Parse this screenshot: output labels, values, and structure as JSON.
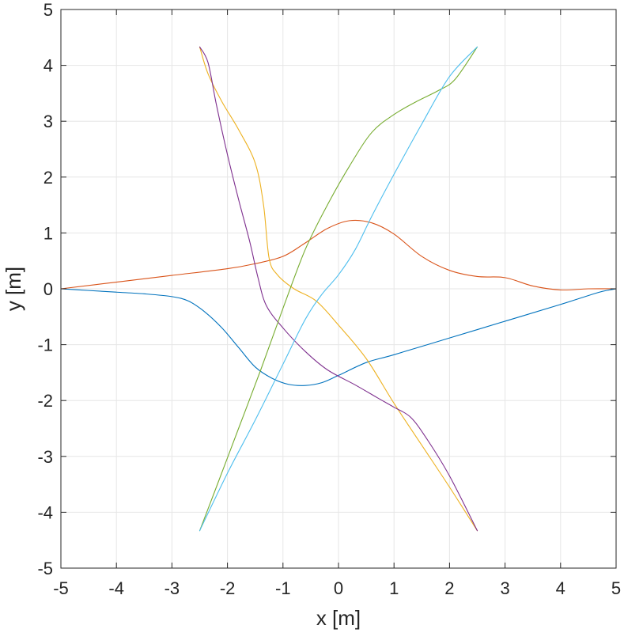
{
  "chart_data": {
    "type": "line",
    "title": "",
    "xlabel": "x [m]",
    "ylabel": "y [m]",
    "xlim": [
      -5,
      5
    ],
    "ylim": [
      -5,
      5
    ],
    "xticks": [
      -5,
      -4,
      -3,
      -2,
      -1,
      0,
      1,
      2,
      3,
      4,
      5
    ],
    "yticks": [
      -5,
      -4,
      -3,
      -2,
      -1,
      0,
      1,
      2,
      3,
      4,
      5
    ],
    "grid": true,
    "series": [
      {
        "color": "#0072BD",
        "x": [
          -5,
          -4.5,
          -4,
          -3.5,
          -3,
          -2.7,
          -2.4,
          -2.1,
          -1.8,
          -1.5,
          -1.2,
          -0.9,
          -0.6,
          -0.3,
          0,
          0.5,
          1,
          2,
          3,
          4,
          4.7,
          5
        ],
        "y": [
          0,
          -0.03,
          -0.06,
          -0.09,
          -0.14,
          -0.22,
          -0.42,
          -0.7,
          -1.05,
          -1.4,
          -1.6,
          -1.71,
          -1.73,
          -1.68,
          -1.55,
          -1.32,
          -1.18,
          -0.88,
          -0.58,
          -0.28,
          -0.06,
          0
        ]
      },
      {
        "color": "#D95319",
        "x": [
          -5,
          -4,
          -3,
          -2,
          -1.5,
          -1,
          -0.6,
          -0.2,
          0.2,
          0.6,
          1,
          1.5,
          2,
          2.5,
          3,
          3.5,
          4,
          4.5,
          5
        ],
        "y": [
          0,
          0.12,
          0.24,
          0.36,
          0.45,
          0.58,
          0.82,
          1.08,
          1.22,
          1.18,
          0.98,
          0.58,
          0.33,
          0.22,
          0.2,
          0.05,
          -0.02,
          0,
          0
        ]
      },
      {
        "color": "#EDB120",
        "x": [
          -2.5,
          -2.35,
          -2.1,
          -1.8,
          -1.5,
          -1.35,
          -1.25,
          -1.1,
          -0.8,
          -0.4,
          0,
          0.5,
          1,
          1.5,
          2,
          2.5
        ],
        "y": [
          4.33,
          3.85,
          3.35,
          2.85,
          2.25,
          1.5,
          0.55,
          0.25,
          0,
          -0.22,
          -0.65,
          -1.25,
          -2.05,
          -2.8,
          -3.55,
          -4.33
        ]
      },
      {
        "color": "#7E2F8E",
        "x": [
          -2.5,
          -2.35,
          -2.2,
          -2,
          -1.8,
          -1.6,
          -1.45,
          -1.3,
          -1,
          -0.6,
          -0.2,
          0.3,
          0.7,
          1,
          1.3,
          1.6,
          2,
          2.5
        ],
        "y": [
          4.33,
          4.05,
          3.3,
          2.4,
          1.6,
          0.85,
          0.2,
          -0.3,
          -0.7,
          -1.12,
          -1.45,
          -1.72,
          -1.95,
          -2.12,
          -2.3,
          -2.7,
          -3.35,
          -4.33
        ]
      },
      {
        "color": "#77AC30",
        "x": [
          -2.5,
          -2.2,
          -1.8,
          -1.4,
          -1,
          -0.6,
          -0.2,
          0.2,
          0.6,
          1,
          1.4,
          1.8,
          2.1,
          2.5
        ],
        "y": [
          -4.33,
          -3.55,
          -2.5,
          -1.45,
          -0.35,
          0.7,
          1.5,
          2.2,
          2.8,
          3.12,
          3.35,
          3.55,
          3.75,
          4.33
        ]
      },
      {
        "color": "#4DBEEE",
        "x": [
          -2.5,
          -2,
          -1.5,
          -1,
          -0.6,
          -0.3,
          0,
          0.3,
          0.6,
          1,
          1.5,
          2,
          2.5
        ],
        "y": [
          -4.33,
          -3.3,
          -2.35,
          -1.35,
          -0.55,
          -0.1,
          0.25,
          0.7,
          1.3,
          2.05,
          2.95,
          3.8,
          4.33
        ]
      }
    ]
  }
}
